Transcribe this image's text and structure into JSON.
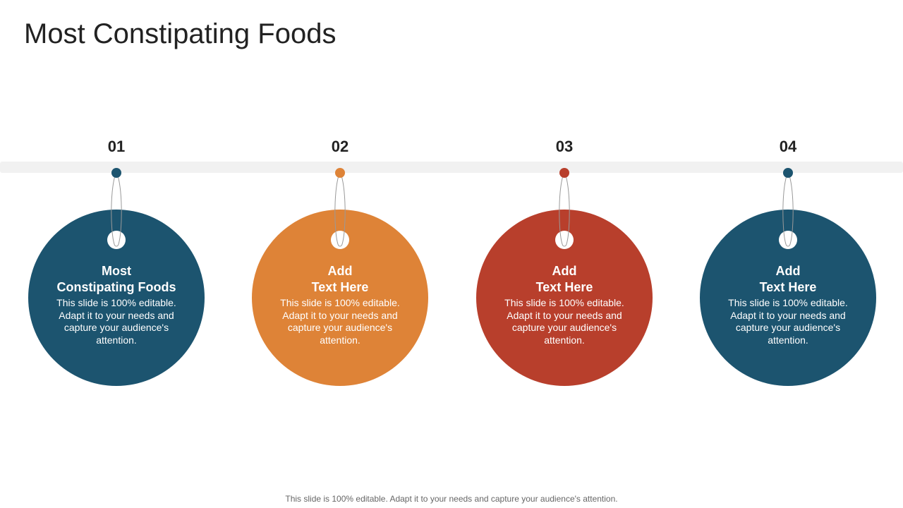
{
  "title": "Most Constipating Foods",
  "steps": [
    {
      "number": "01",
      "heading_line1": "Most",
      "heading_line2": "Constipating Foods",
      "description": "This slide is 100% editable. Adapt it to your needs and capture your audience's attention.",
      "color": "#1c546f"
    },
    {
      "number": "02",
      "heading_line1": "Add",
      "heading_line2": "Text Here",
      "description": "This slide is 100% editable. Adapt it to your needs and capture your audience's attention.",
      "color": "#de8337"
    },
    {
      "number": "03",
      "heading_line1": "Add",
      "heading_line2": "Text Here",
      "description": "This slide is 100% editable. Adapt it to your needs and capture your audience's attention.",
      "color": "#b83f2c"
    },
    {
      "number": "04",
      "heading_line1": "Add",
      "heading_line2": "Text Here",
      "description": "This slide is 100% editable. Adapt it to your needs and capture your audience's attention.",
      "color": "#1c546f"
    }
  ],
  "footer": "This slide is 100% editable. Adapt it to your needs and capture your audience's attention."
}
